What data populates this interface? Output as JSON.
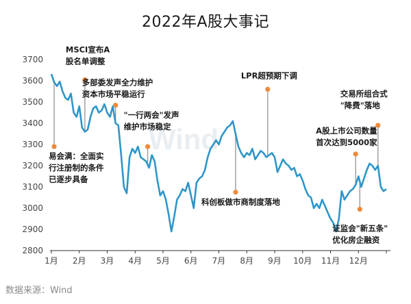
{
  "chart_data": {
    "type": "line",
    "title": "2022年A股大事记",
    "source": "数据来源：Wind",
    "watermark": "Wind",
    "xlabel": "",
    "ylabel": "",
    "ylim": [
      2800,
      3700
    ],
    "yticks": [
      "2800",
      "2900",
      "3000",
      "3100",
      "3200",
      "3300",
      "3400",
      "3500",
      "3600",
      "3700"
    ],
    "xticks": [
      "1月",
      "2月",
      "3月",
      "4月",
      "5月",
      "6月",
      "7月",
      "8月",
      "9月",
      "10月",
      "11月",
      "12月"
    ],
    "grid": false,
    "line_color": "#2e95c9",
    "marker_color": "#ef8a3a",
    "series": [
      {
        "x": [
          0,
          0.1,
          0.2,
          0.3,
          0.4,
          0.5,
          0.6,
          0.7,
          0.8,
          0.9,
          1.0,
          1.1,
          1.2,
          1.3,
          1.4,
          1.5,
          1.6,
          1.7,
          1.8,
          1.9,
          2.0,
          2.1,
          2.2,
          2.3,
          2.4,
          2.5,
          2.6,
          2.7,
          2.8,
          2.9,
          3.0,
          3.1,
          3.2,
          3.3,
          3.4,
          3.5,
          3.6,
          3.7,
          3.8,
          3.9,
          4.0,
          4.1,
          4.2,
          4.3,
          4.4,
          4.5,
          4.6,
          4.7,
          4.8,
          4.9,
          5.0,
          5.1,
          5.2,
          5.3,
          5.4,
          5.5,
          5.6,
          5.7,
          5.8,
          5.9,
          6.0,
          6.1,
          6.2,
          6.3,
          6.4,
          6.5,
          6.6,
          6.7,
          6.8,
          6.9,
          7.0,
          7.1,
          7.2,
          7.3,
          7.4,
          7.5,
          7.6,
          7.7,
          7.8,
          7.9,
          8.0,
          8.1,
          8.2,
          8.3,
          8.4,
          8.5,
          8.6,
          8.7,
          8.8,
          8.9,
          9.0,
          9.1,
          9.2,
          9.3,
          9.4,
          9.5,
          9.6,
          9.7,
          9.8,
          9.9,
          10.0,
          10.1,
          10.2,
          10.3,
          10.4,
          10.5,
          10.6,
          10.7,
          10.8,
          10.9,
          11.0,
          11.1,
          11.2,
          11.3,
          11.4,
          11.5,
          11.6,
          11.7,
          11.8,
          11.9,
          12.0
        ],
        "values": [
          3632,
          3593,
          3575,
          3596,
          3550,
          3520,
          3510,
          3540,
          3450,
          3430,
          3480,
          3380,
          3360,
          3370,
          3430,
          3470,
          3480,
          3450,
          3460,
          3490,
          3450,
          3430,
          3480,
          3400,
          3390,
          3250,
          3100,
          3070,
          3240,
          3280,
          3260,
          3290,
          3240,
          3230,
          3220,
          3190,
          3250,
          3220,
          3130,
          3060,
          3080,
          3040,
          2970,
          2890,
          2960,
          3040,
          3060,
          3090,
          3080,
          3120,
          3060,
          3000,
          3120,
          3140,
          3150,
          3180,
          3240,
          3280,
          3300,
          3320,
          3300,
          3340,
          3360,
          3380,
          3390,
          3410,
          3350,
          3290,
          3260,
          3240,
          3260,
          3250,
          3280,
          3230,
          3250,
          3270,
          3260,
          3240,
          3250,
          3260,
          3240,
          3170,
          3200,
          3230,
          3210,
          3200,
          3180,
          3190,
          3150,
          3160,
          3130,
          3090,
          3060,
          3050,
          3000,
          3020,
          3000,
          3040,
          3010,
          2980,
          2950,
          2930,
          2890,
          2950,
          3080,
          3040,
          3060,
          3080,
          3090,
          3110,
          3150,
          3100,
          3140,
          3180,
          3210,
          3200,
          3180,
          3200,
          3100,
          3080,
          3090
        ]
      }
    ],
    "annotations": [
      {
        "x": 0.1,
        "marker_value": 3290,
        "text": [
          "易会满：全面实",
          "行注册制的条件",
          "已逐步具备"
        ],
        "text_pos": "below"
      },
      {
        "x": 1.2,
        "marker_value": 3605,
        "text": [
          "MSCI宣布A",
          "股名单调整"
        ],
        "text_pos": "above"
      },
      {
        "x": 2.3,
        "marker_value": 3485,
        "text": [
          "多部委发声全力维护",
          "资本市场平稳运行"
        ],
        "text_pos": "above"
      },
      {
        "x": 3.45,
        "marker_value": 3290,
        "text": [
          "\"一行两会\"发声",
          "维护市场稳定"
        ],
        "text_pos": "above"
      },
      {
        "x": 6.6,
        "marker_value": 3075,
        "text": [
          "科创板做市商制度落地"
        ],
        "text_pos": "below"
      },
      {
        "x": 7.75,
        "marker_value": 3560,
        "text": [
          "LPR超预期下调"
        ],
        "text_pos": "above"
      },
      {
        "x": 10.9,
        "marker_value": 3255,
        "text": [
          "A股上市公司数量",
          "首次达到5000家"
        ],
        "text_pos": "above"
      },
      {
        "x": 11.05,
        "marker_value": 2995,
        "text": [
          "证监会\"新五条\"",
          "优化房企融资"
        ],
        "text_pos": "below"
      },
      {
        "x": 11.7,
        "marker_value": 3390,
        "text": [
          "交易所组合式",
          "\"降费\"落地"
        ],
        "text_pos": "above"
      }
    ]
  }
}
